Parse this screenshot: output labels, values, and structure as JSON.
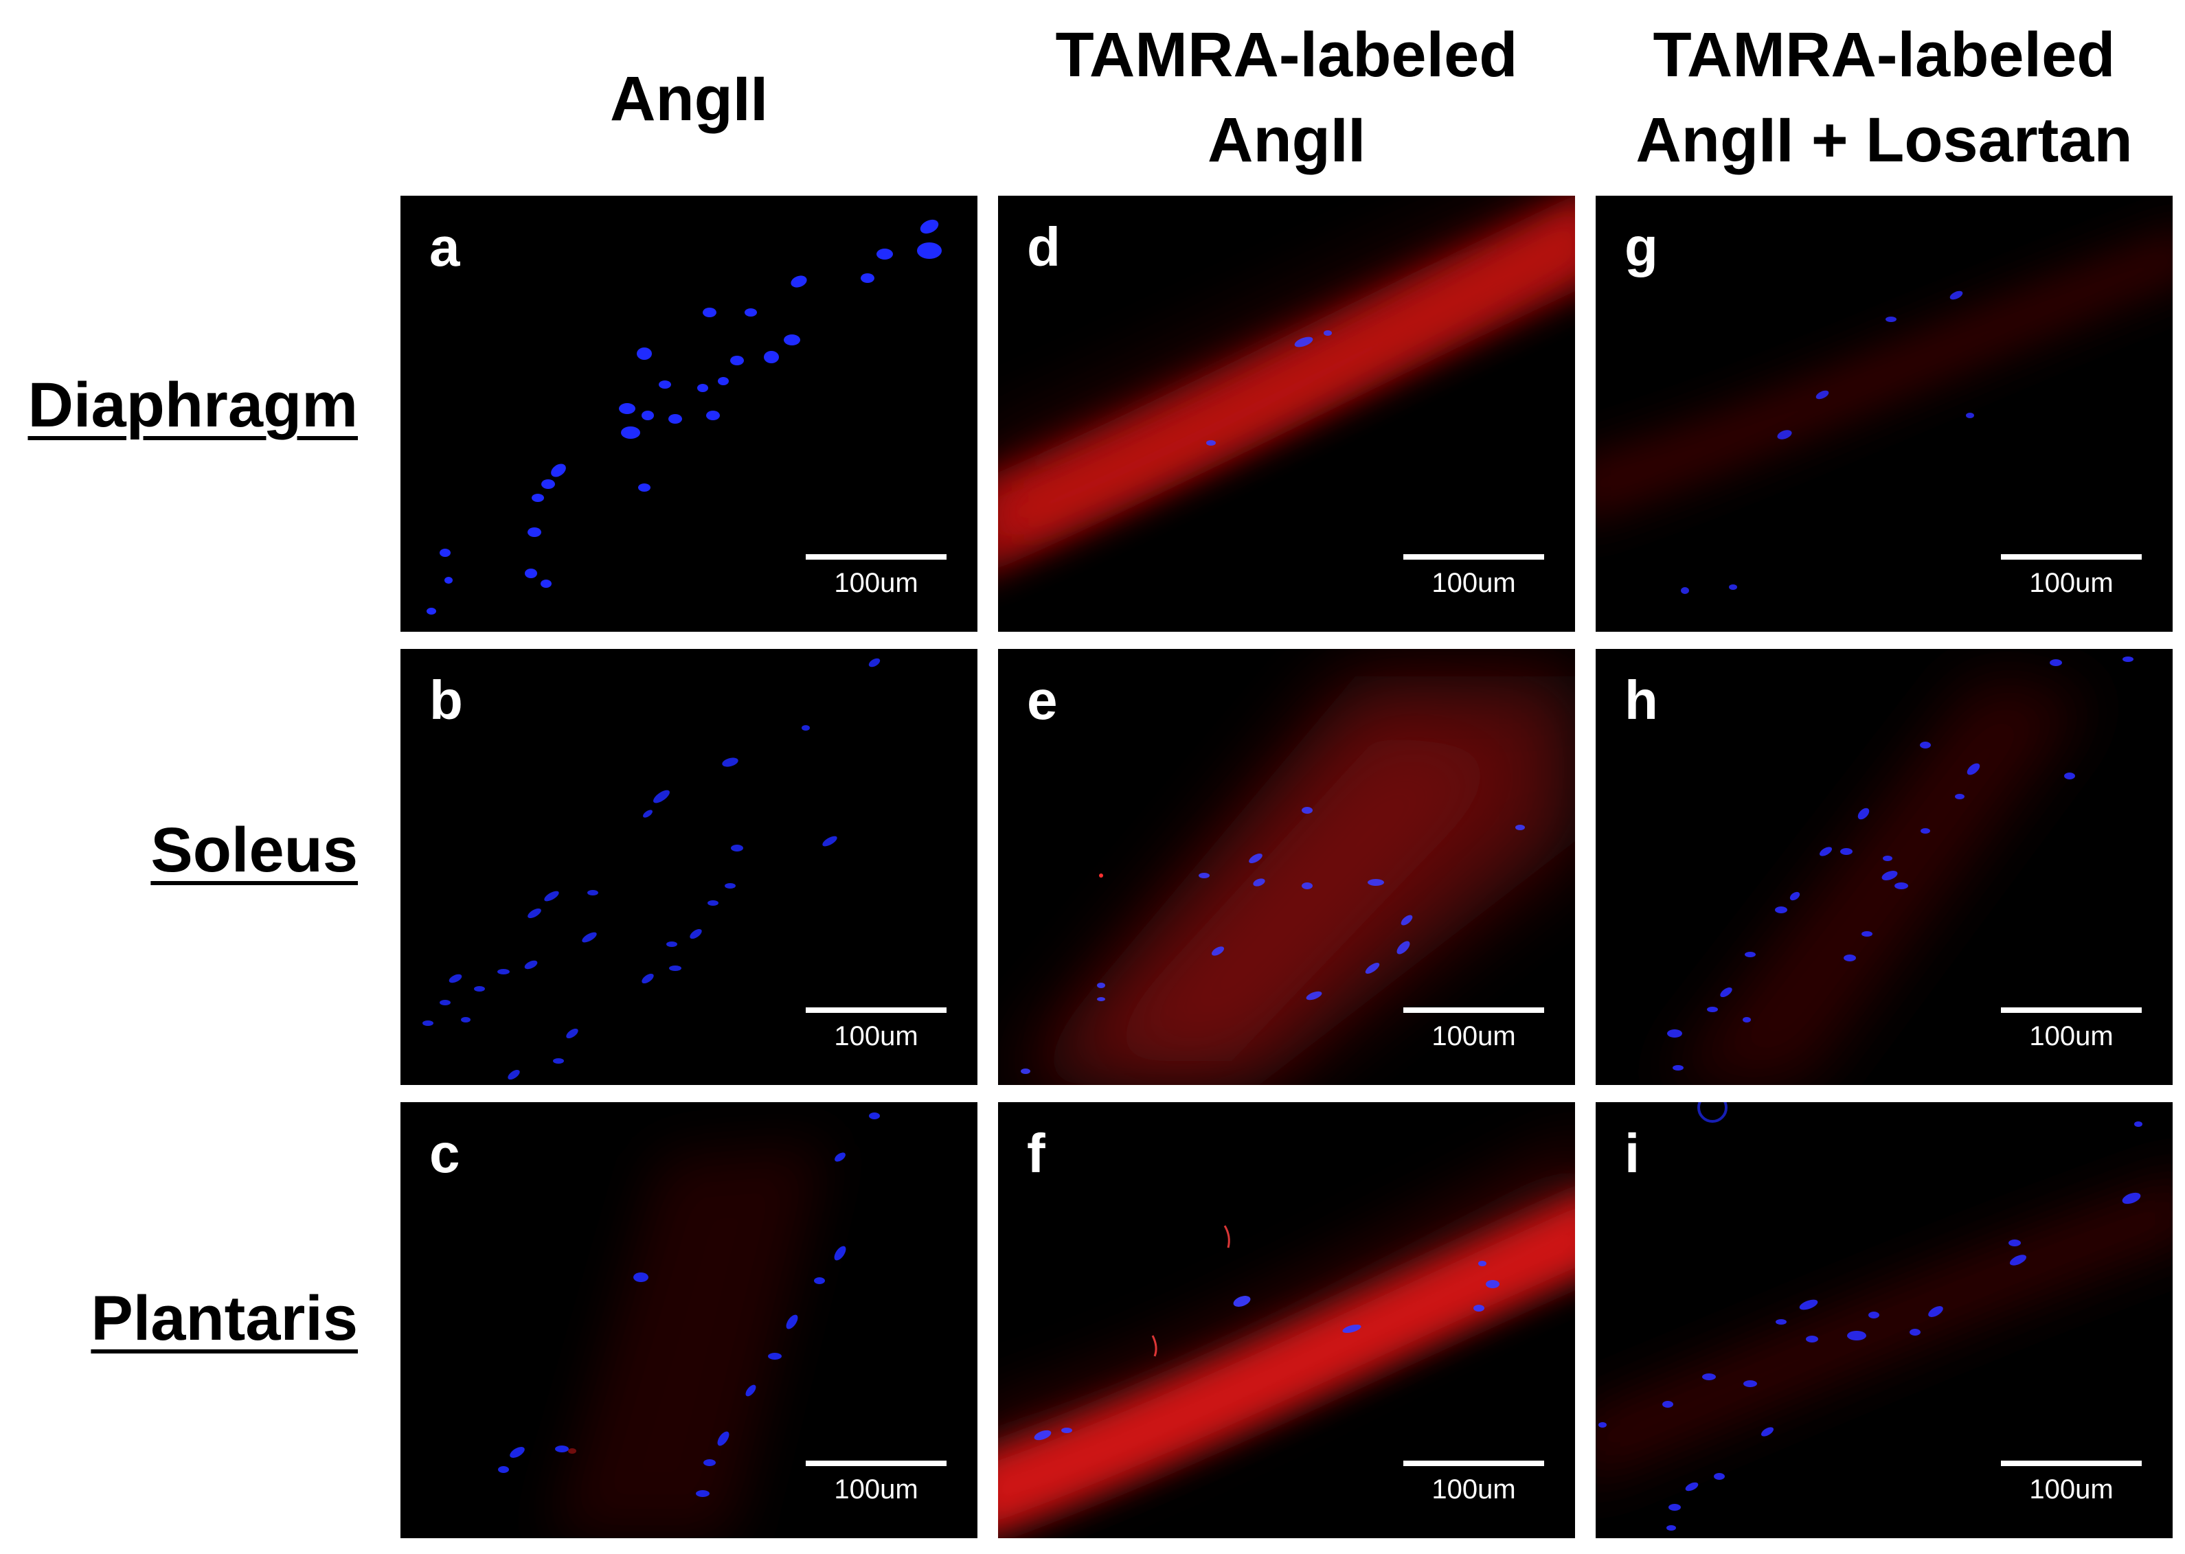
{
  "column_headers": {
    "angii": [
      "AngII"
    ],
    "tamra": [
      "TAMRA-labeled",
      "AngII"
    ],
    "tamra_losartan": [
      "TAMRA-labeled",
      "AngII + Losartan"
    ]
  },
  "row_labels": {
    "diaphragm": "Diaphragm",
    "soleus": "Soleus",
    "plantaris": "Plantaris"
  },
  "panels": {
    "a": {
      "letter": "a",
      "scale_label": "100um"
    },
    "b": {
      "letter": "b",
      "scale_label": "100um"
    },
    "c": {
      "letter": "c",
      "scale_label": "100um"
    },
    "d": {
      "letter": "d",
      "scale_label": "100um"
    },
    "e": {
      "letter": "e",
      "scale_label": "100um"
    },
    "f": {
      "letter": "f",
      "scale_label": "100um"
    },
    "g": {
      "letter": "g",
      "scale_label": "100um"
    },
    "h": {
      "letter": "h",
      "scale_label": "100um"
    },
    "i": {
      "letter": "i",
      "scale_label": "100um"
    }
  },
  "colors": {
    "nuclei_stain": "#1f2bff",
    "tamra_signal": "#c81010",
    "panel_background": "#000000",
    "annotation_text": "#ffffff"
  }
}
